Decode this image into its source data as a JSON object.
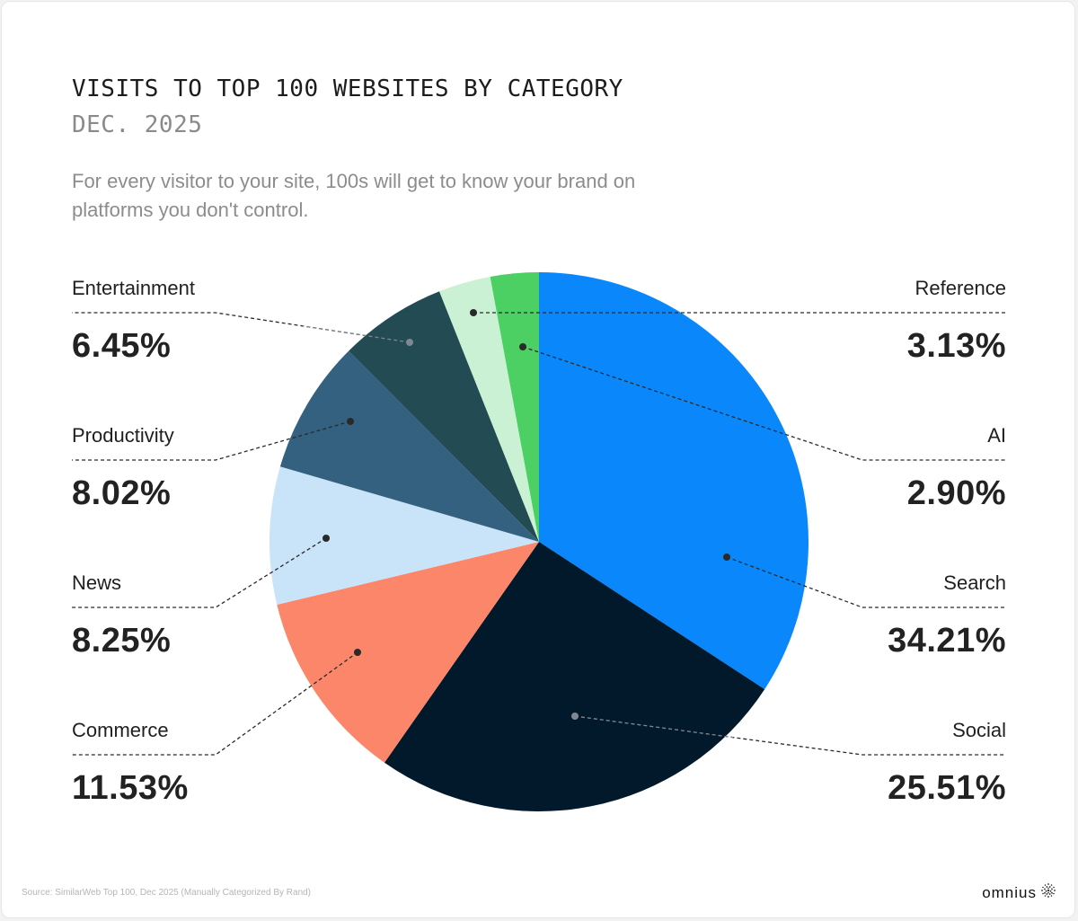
{
  "header": {
    "title": "VISITS TO TOP 100 WEBSITES BY CATEGORY",
    "date": "DEC. 2025",
    "description": "For every visitor to your site, 100s will get to know your brand on platforms you don't control."
  },
  "footer": {
    "source": "Source: SimilarWeb Top 100, Dec 2025 (Manually Categorized By Rand)",
    "brand": "omnius",
    "brand_icon": "dotted-sphere-icon"
  },
  "chart_data": {
    "type": "pie",
    "title": "VISITS TO TOP 100 WEBSITES BY CATEGORY",
    "subtitle": "DEC. 2025",
    "start_angle": "12 o'clock",
    "direction": "clockwise",
    "unit": "%",
    "categories": [
      "Search",
      "Social",
      "Commerce",
      "News",
      "Productivity",
      "Entertainment",
      "Reference",
      "AI"
    ],
    "values": [
      34.21,
      25.51,
      11.53,
      8.25,
      8.02,
      6.45,
      3.13,
      2.9
    ],
    "labels": [
      "34.21%",
      "25.51%",
      "11.53%",
      "8.25%",
      "8.02%",
      "6.45%",
      "3.13%",
      "2.90%"
    ],
    "colors": [
      "#0a88fb",
      "#02192c",
      "#fb866a",
      "#c9e3f9",
      "#33617f",
      "#234b53",
      "#caf1d3",
      "#4cd064"
    ],
    "legend_position": "callouts left and right"
  },
  "callouts": {
    "left": [
      {
        "name": "Entertainment",
        "value": "6.45%"
      },
      {
        "name": "Productivity",
        "value": "8.02%"
      },
      {
        "name": "News",
        "value": "8.25%"
      },
      {
        "name": "Commerce",
        "value": "11.53%"
      }
    ],
    "right": [
      {
        "name": "Reference",
        "value": "3.13%"
      },
      {
        "name": "AI",
        "value": "2.90%"
      },
      {
        "name": "Search",
        "value": "34.21%"
      },
      {
        "name": "Social",
        "value": "25.51%"
      }
    ]
  }
}
